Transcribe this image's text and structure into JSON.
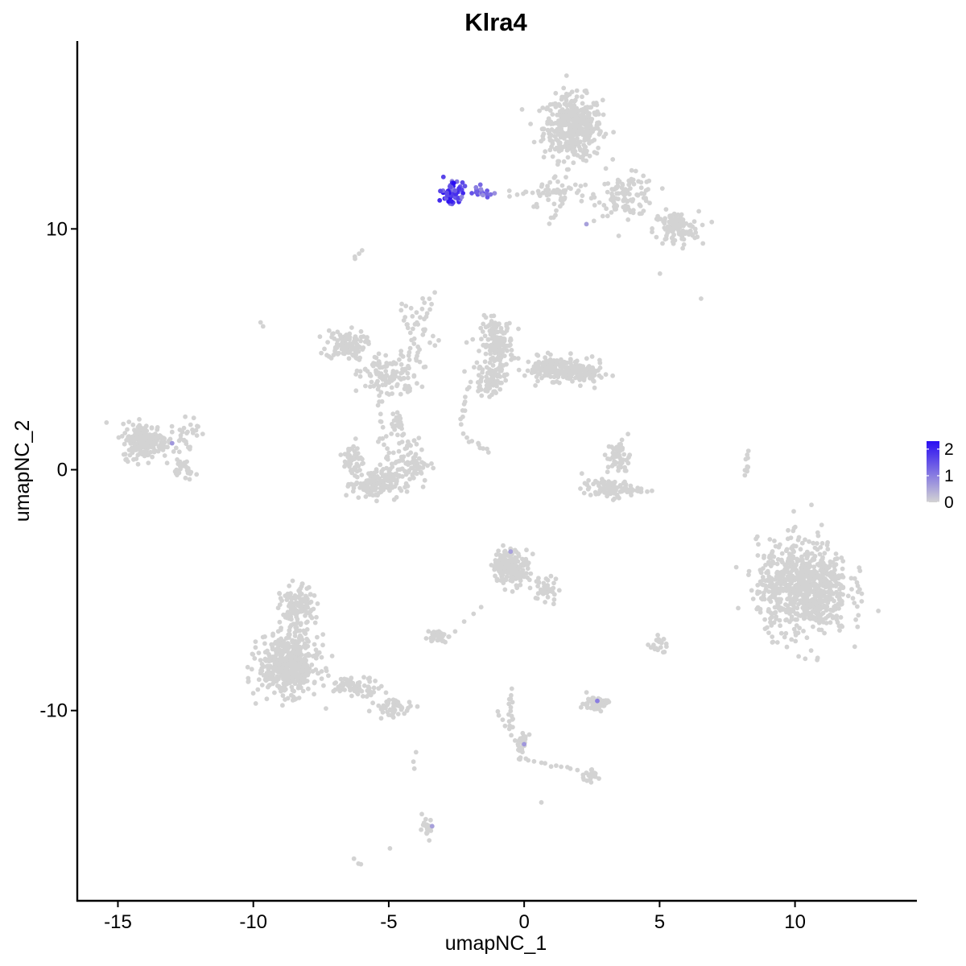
{
  "chart_data": {
    "type": "scatter",
    "title": "Klra4",
    "xlabel": "umapNC_1",
    "ylabel": "umapNC_2",
    "xlim": [
      -16.5,
      14.5
    ],
    "ylim": [
      -17.9,
      17.8
    ],
    "xticks": [
      -15,
      -10,
      -5,
      0,
      5,
      10
    ],
    "xtick_labels": [
      "-15",
      "-10",
      "-5",
      "0",
      "5",
      "10"
    ],
    "yticks": [
      -10,
      0,
      10
    ],
    "ytick_labels": [
      "-10",
      "0",
      "10"
    ],
    "grid": false,
    "legend": {
      "placement": "right",
      "type": "colorbar",
      "range": [
        0,
        2.3
      ],
      "ticks": [
        0,
        1,
        2
      ],
      "tick_labels": [
        "0",
        "1",
        "2"
      ],
      "low_color": "#d3d3d3",
      "high_color": "#2a0ef2"
    },
    "clusters": [
      {
        "center": [
          1.8,
          14.2
        ],
        "spread": [
          0.9,
          1.1
        ],
        "n": 420
      },
      {
        "center": [
          3.8,
          11.4
        ],
        "spread": [
          0.9,
          0.7
        ],
        "n": 110
      },
      {
        "center": [
          5.6,
          10.0
        ],
        "spread": [
          0.7,
          0.6
        ],
        "n": 110
      },
      {
        "center": [
          1.2,
          11.5
        ],
        "spread": [
          1.0,
          0.6
        ],
        "n": 50
      },
      {
        "center": [
          -6.6,
          5.2
        ],
        "spread": [
          0.6,
          0.5
        ],
        "n": 110
      },
      {
        "center": [
          -5.0,
          3.9
        ],
        "spread": [
          0.9,
          0.8
        ],
        "n": 120
      },
      {
        "center": [
          -3.8,
          6.0
        ],
        "spread": [
          0.5,
          1.1
        ],
        "n": 35
      },
      {
        "center": [
          -1.0,
          5.2
        ],
        "spread": [
          0.5,
          0.9
        ],
        "n": 160
      },
      {
        "center": [
          1.1,
          4.2
        ],
        "spread": [
          0.9,
          0.4
        ],
        "n": 150
      },
      {
        "center": [
          2.2,
          4.0
        ],
        "spread": [
          0.6,
          0.4
        ],
        "n": 90
      },
      {
        "center": [
          -1.3,
          3.7
        ],
        "spread": [
          0.5,
          0.5
        ],
        "n": 70
      },
      {
        "center": [
          -5.5,
          -0.6
        ],
        "spread": [
          0.7,
          0.5
        ],
        "n": 140
      },
      {
        "center": [
          -4.3,
          0.3
        ],
        "spread": [
          0.7,
          0.9
        ],
        "n": 90
      },
      {
        "center": [
          -6.3,
          0.4
        ],
        "spread": [
          0.3,
          0.7
        ],
        "n": 50
      },
      {
        "center": [
          -4.7,
          2.0
        ],
        "spread": [
          0.3,
          0.5
        ],
        "n": 25
      },
      {
        "center": [
          -14.0,
          1.2
        ],
        "spread": [
          0.7,
          0.6
        ],
        "n": 220
      },
      {
        "center": [
          -12.5,
          1.5
        ],
        "spread": [
          0.4,
          0.7
        ],
        "n": 30
      },
      {
        "center": [
          -12.6,
          0.0
        ],
        "spread": [
          0.4,
          0.3
        ],
        "n": 25
      },
      {
        "center": [
          3.5,
          0.5
        ],
        "spread": [
          0.35,
          0.6
        ],
        "n": 55
      },
      {
        "center": [
          3.2,
          -0.8
        ],
        "spread": [
          0.9,
          0.3
        ],
        "n": 90
      },
      {
        "center": [
          10.3,
          -4.9
        ],
        "spread": [
          1.4,
          1.6
        ],
        "n": 800
      },
      {
        "center": [
          8.2,
          0.2
        ],
        "spread": [
          0.1,
          0.5
        ],
        "n": 10
      },
      {
        "center": [
          -8.7,
          -8.1
        ],
        "spread": [
          0.9,
          1.0
        ],
        "n": 500
      },
      {
        "center": [
          -8.4,
          -5.8
        ],
        "spread": [
          0.5,
          0.8
        ],
        "n": 140
      },
      {
        "center": [
          -6.2,
          -9.0
        ],
        "spread": [
          0.8,
          0.3
        ],
        "n": 70
      },
      {
        "center": [
          -4.8,
          -9.9
        ],
        "spread": [
          0.6,
          0.3
        ],
        "n": 50
      },
      {
        "center": [
          -0.5,
          -4.0
        ],
        "spread": [
          0.55,
          0.6
        ],
        "n": 180
      },
      {
        "center": [
          0.8,
          -5.0
        ],
        "spread": [
          0.4,
          0.5
        ],
        "n": 40
      },
      {
        "center": [
          -3.2,
          -6.9
        ],
        "spread": [
          0.3,
          0.2
        ],
        "n": 40
      },
      {
        "center": [
          2.6,
          -9.7
        ],
        "spread": [
          0.4,
          0.25
        ],
        "n": 60
      },
      {
        "center": [
          -0.1,
          -11.4
        ],
        "spread": [
          0.2,
          0.5
        ],
        "n": 30
      },
      {
        "center": [
          -0.5,
          -10.0
        ],
        "spread": [
          0.1,
          0.7
        ],
        "n": 15
      },
      {
        "center": [
          2.4,
          -12.7
        ],
        "spread": [
          0.3,
          0.2
        ],
        "n": 25
      },
      {
        "center": [
          -3.6,
          -14.9
        ],
        "spread": [
          0.2,
          0.35
        ],
        "n": 22
      },
      {
        "center": [
          5.0,
          -7.2
        ],
        "spread": [
          0.2,
          0.2
        ],
        "n": 14
      },
      {
        "center": [
          -2.7,
          11.5
        ],
        "spread": [
          0.35,
          0.35
        ],
        "n": 60,
        "expr": [
          0.8,
          2.3
        ]
      },
      {
        "center": [
          -1.6,
          11.5
        ],
        "spread": [
          0.4,
          0.25
        ],
        "n": 20,
        "expr": [
          0.6,
          1.8
        ]
      }
    ],
    "bridges": [
      {
        "from": [
          -5.4,
          3.5
        ],
        "to": [
          -5.0,
          -0.3
        ],
        "n": 18
      },
      {
        "from": [
          -4.6,
          6.8
        ],
        "to": [
          -3.7,
          4.3
        ],
        "n": 14
      },
      {
        "from": [
          -2.2,
          3.0
        ],
        "to": [
          -2.3,
          1.9
        ],
        "n": 8
      },
      {
        "from": [
          -2.2,
          1.4
        ],
        "to": [
          -1.3,
          0.7
        ],
        "n": 10
      },
      {
        "from": [
          -0.5,
          11.4
        ],
        "to": [
          1.3,
          11.6
        ],
        "n": 10
      },
      {
        "from": [
          0.9,
          10.3
        ],
        "to": [
          1.3,
          11.0
        ],
        "n": 5
      },
      {
        "from": [
          -6.0,
          9.1
        ],
        "to": [
          -6.3,
          8.8
        ],
        "n": 4
      },
      {
        "from": [
          -9.7,
          6.1
        ],
        "to": [
          -9.6,
          5.9
        ],
        "n": 2
      },
      {
        "from": [
          -2.8,
          -7.0
        ],
        "to": [
          -1.6,
          -5.7
        ],
        "n": 5
      },
      {
        "from": [
          -0.2,
          -12.0
        ],
        "to": [
          2.0,
          -12.5
        ],
        "n": 12
      },
      {
        "from": [
          -1.0,
          -10.0
        ],
        "to": [
          -0.5,
          -11.0
        ],
        "n": 6
      },
      {
        "from": [
          -4.0,
          -11.8
        ],
        "to": [
          -4.0,
          -12.4
        ],
        "n": 3
      },
      {
        "from": [
          -6.0,
          -16.4
        ],
        "to": [
          -6.2,
          -16.2
        ],
        "n": 3
      },
      {
        "from": [
          4.6,
          -7.3
        ],
        "to": [
          5.2,
          -7.6
        ],
        "n": 6
      },
      {
        "from": [
          6.5,
          7.1
        ],
        "to": [
          6.5,
          7.1
        ],
        "n": 1
      },
      {
        "from": [
          5.0,
          8.1
        ],
        "to": [
          5.0,
          8.1
        ],
        "n": 1
      },
      {
        "from": [
          -4.9,
          -15.7
        ],
        "to": [
          -4.9,
          -15.7
        ],
        "n": 1
      },
      {
        "from": [
          0.6,
          -13.9
        ],
        "to": [
          0.6,
          -13.9
        ],
        "n": 1
      },
      {
        "from": [
          2.8,
          -9.6
        ],
        "to": [
          2.8,
          -9.6
        ],
        "n": 1
      }
    ],
    "highlighted_points": [
      {
        "x": -13.0,
        "y": 1.1,
        "value": 0.7
      },
      {
        "x": -0.5,
        "y": -3.4,
        "value": 0.6
      },
      {
        "x": 2.7,
        "y": -9.6,
        "value": 1.0
      },
      {
        "x": 0.0,
        "y": -11.4,
        "value": 0.7
      },
      {
        "x": -3.4,
        "y": -14.8,
        "value": 0.6
      },
      {
        "x": 2.3,
        "y": 10.2,
        "value": 0.6
      },
      {
        "x": -2.6,
        "y": 11.9,
        "value": 2.3
      }
    ]
  }
}
